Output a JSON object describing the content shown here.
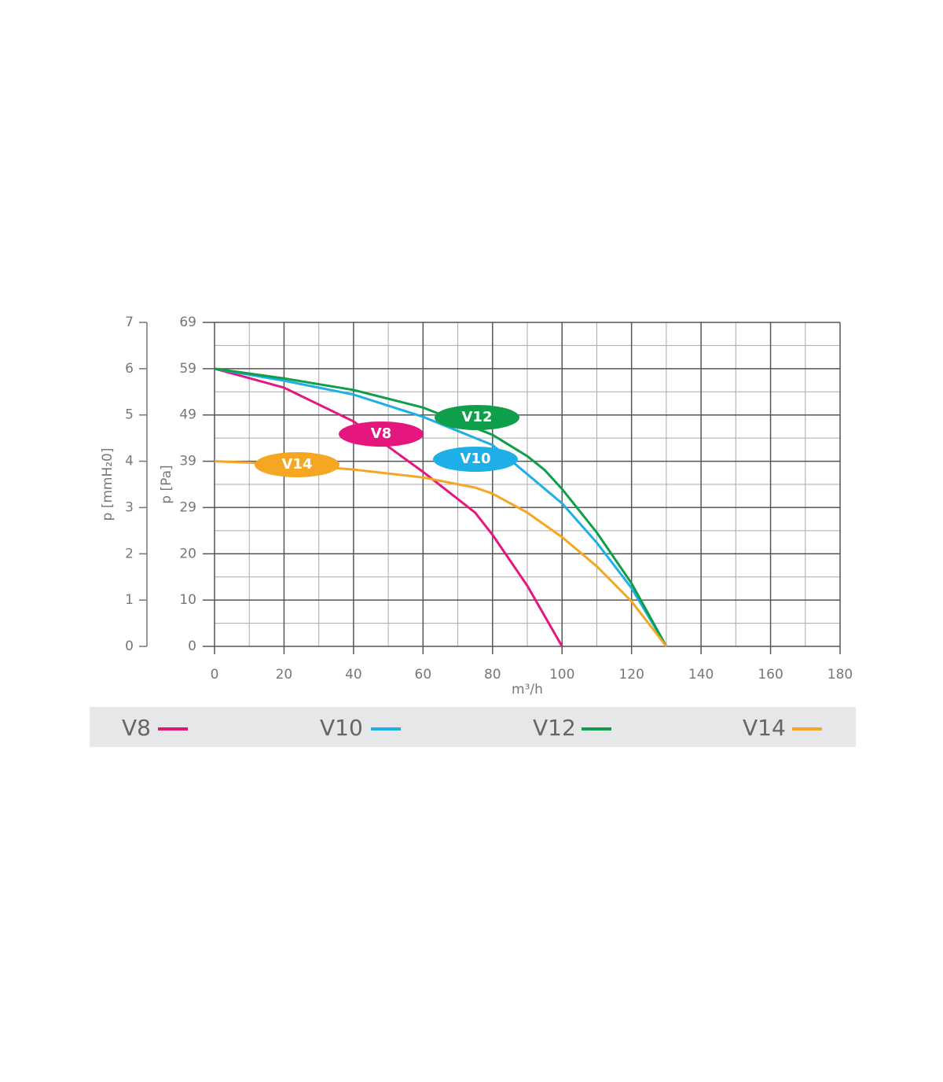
{
  "chart_data": {
    "type": "line",
    "y_label": "p [mmH₂0]",
    "y2_label": "p [Pa]",
    "x_label": "m³/h",
    "xlim": [
      0,
      180
    ],
    "xticks": [
      0,
      20,
      40,
      60,
      80,
      100,
      120,
      140,
      160,
      180
    ],
    "minor_xticks": [
      10,
      30,
      50,
      70,
      90,
      110,
      130,
      150,
      170
    ],
    "ylim": [
      0,
      7
    ],
    "yticks": [
      0,
      1,
      2,
      3,
      4,
      5,
      6,
      7
    ],
    "minor_yticks": [
      0.5,
      1.5,
      2.5,
      3.5,
      4.5,
      5.5,
      6.5
    ],
    "y2lim": [
      0,
      68.67
    ],
    "y2ticks": [
      0,
      {
        "value": 9.81,
        "label": "10"
      },
      {
        "value": 19.62,
        "label": "20"
      },
      {
        "value": 29.43,
        "label": "29"
      },
      {
        "value": 39.24,
        "label": "39"
      },
      {
        "value": 49.05,
        "label": "49"
      },
      {
        "value": 58.86,
        "label": "59"
      },
      {
        "value": 68.67,
        "label": "69"
      }
    ],
    "grid": true,
    "series": [
      {
        "name": "V8",
        "color": "#e5177e",
        "x": [
          0,
          20,
          40,
          60,
          75,
          80,
          90,
          100
        ],
        "values": [
          6.0,
          5.59,
          4.86,
          3.77,
          2.89,
          2.41,
          1.31,
          0
        ]
      },
      {
        "name": "V10",
        "color": "#1eaee8",
        "x": [
          0,
          20,
          40,
          60,
          80,
          100,
          110,
          120,
          130
        ],
        "values": [
          6.0,
          5.74,
          5.44,
          4.96,
          4.35,
          3.09,
          2.24,
          1.26,
          0
        ]
      },
      {
        "name": "V12",
        "color": "#0f9e4a",
        "x": [
          0,
          20,
          40,
          60,
          80,
          90,
          95,
          100,
          110,
          120,
          130
        ],
        "values": [
          6.0,
          5.79,
          5.54,
          5.16,
          4.57,
          4.11,
          3.81,
          3.4,
          2.46,
          1.36,
          0
        ]
      },
      {
        "name": "V14",
        "color": "#f5a623",
        "x": [
          0,
          20,
          40,
          60,
          75,
          80,
          90,
          100,
          110,
          120,
          130
        ],
        "values": [
          4.0,
          3.94,
          3.82,
          3.65,
          3.43,
          3.3,
          2.89,
          2.36,
          1.73,
          0.97,
          0
        ]
      }
    ]
  }
}
